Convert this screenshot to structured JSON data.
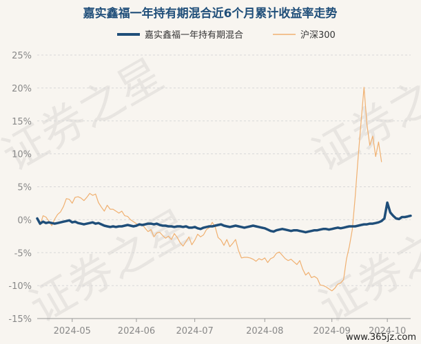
{
  "chart_data": {
    "type": "line",
    "title": "嘉实鑫福一年持有期混合近6个月累计收益率走势",
    "xlabel": "",
    "ylabel": "",
    "ylim": [
      -15,
      25
    ],
    "y_ticks": [
      "25%",
      "20%",
      "15%",
      "10%",
      "5%",
      "0%",
      "-5%",
      "-10%",
      "-15%"
    ],
    "y_tick_values": [
      25,
      20,
      15,
      10,
      5,
      0,
      -5,
      -10,
      -15
    ],
    "x_range": [
      0,
      128
    ],
    "x_ticks": [
      {
        "label": "2024-05",
        "x": 12
      },
      {
        "label": "2024-06",
        "x": 34
      },
      {
        "label": "2024-07",
        "x": 54
      },
      {
        "label": "2024-08",
        "x": 78
      },
      {
        "label": "2024-09",
        "x": 101
      },
      {
        "label": "2024-10",
        "x": 120
      }
    ],
    "grid": true,
    "legend_position": "top",
    "series": [
      {
        "name": "嘉实鑫福一年持有期混合",
        "color": "#1f4e79",
        "points": [
          [
            0,
            0.2
          ],
          [
            1,
            -0.6
          ],
          [
            2,
            -0.3
          ],
          [
            3,
            -0.5
          ],
          [
            4,
            -0.4
          ],
          [
            5,
            -0.5
          ],
          [
            6,
            -0.6
          ],
          [
            7,
            -0.5
          ],
          [
            8,
            -0.4
          ],
          [
            9,
            -0.3
          ],
          [
            10,
            -0.2
          ],
          [
            11,
            -0.1
          ],
          [
            12,
            -0.4
          ],
          [
            13,
            -0.3
          ],
          [
            14,
            -0.5
          ],
          [
            15,
            -0.6
          ],
          [
            16,
            -0.7
          ],
          [
            17,
            -0.6
          ],
          [
            18,
            -0.5
          ],
          [
            19,
            -0.4
          ],
          [
            20,
            -0.6
          ],
          [
            21,
            -0.5
          ],
          [
            22,
            -0.7
          ],
          [
            23,
            -0.9
          ],
          [
            24,
            -1.0
          ],
          [
            25,
            -1.1
          ],
          [
            26,
            -1.0
          ],
          [
            27,
            -1.1
          ],
          [
            28,
            -1.0
          ],
          [
            29,
            -1.0
          ],
          [
            30,
            -0.9
          ],
          [
            31,
            -0.8
          ],
          [
            32,
            -0.9
          ],
          [
            33,
            -1.0
          ],
          [
            34,
            -0.9
          ],
          [
            35,
            -0.7
          ],
          [
            36,
            -0.8
          ],
          [
            37,
            -0.7
          ],
          [
            38,
            -0.6
          ],
          [
            39,
            -0.6
          ],
          [
            40,
            -0.7
          ],
          [
            41,
            -0.6
          ],
          [
            42,
            -0.8
          ],
          [
            43,
            -0.9
          ],
          [
            44,
            -0.9
          ],
          [
            45,
            -1.0
          ],
          [
            46,
            -1.0
          ],
          [
            47,
            -1.1
          ],
          [
            48,
            -1.0
          ],
          [
            49,
            -1.0
          ],
          [
            50,
            -1.1
          ],
          [
            51,
            -1.0
          ],
          [
            52,
            -1.2
          ],
          [
            53,
            -1.2
          ],
          [
            54,
            -1.1
          ],
          [
            55,
            -1.3
          ],
          [
            56,
            -1.4
          ],
          [
            57,
            -1.2
          ],
          [
            58,
            -1.1
          ],
          [
            59,
            -1.0
          ],
          [
            60,
            -1.0
          ],
          [
            61,
            -0.9
          ],
          [
            62,
            -0.8
          ],
          [
            63,
            -0.7
          ],
          [
            64,
            -0.9
          ],
          [
            65,
            -1.0
          ],
          [
            66,
            -1.1
          ],
          [
            67,
            -1.0
          ],
          [
            68,
            -0.9
          ],
          [
            69,
            -1.0
          ],
          [
            70,
            -1.1
          ],
          [
            71,
            -1.2
          ],
          [
            72,
            -1.1
          ],
          [
            73,
            -1.0
          ],
          [
            74,
            -0.9
          ],
          [
            75,
            -1.0
          ],
          [
            76,
            -1.1
          ],
          [
            77,
            -1.2
          ],
          [
            78,
            -1.3
          ],
          [
            79,
            -1.5
          ],
          [
            80,
            -1.7
          ],
          [
            81,
            -1.8
          ],
          [
            82,
            -1.6
          ],
          [
            83,
            -1.5
          ],
          [
            84,
            -1.4
          ],
          [
            85,
            -1.5
          ],
          [
            86,
            -1.6
          ],
          [
            87,
            -1.7
          ],
          [
            88,
            -1.6
          ],
          [
            89,
            -1.6
          ],
          [
            90,
            -1.7
          ],
          [
            91,
            -1.8
          ],
          [
            92,
            -1.9
          ],
          [
            93,
            -1.8
          ],
          [
            94,
            -1.7
          ],
          [
            95,
            -1.6
          ],
          [
            96,
            -1.6
          ],
          [
            97,
            -1.5
          ],
          [
            98,
            -1.4
          ],
          [
            99,
            -1.4
          ],
          [
            100,
            -1.5
          ],
          [
            101,
            -1.4
          ],
          [
            102,
            -1.3
          ],
          [
            103,
            -1.2
          ],
          [
            104,
            -1.3
          ],
          [
            105,
            -1.2
          ],
          [
            106,
            -1.1
          ],
          [
            107,
            -1.0
          ],
          [
            108,
            -1.0
          ],
          [
            109,
            -1.0
          ],
          [
            110,
            -0.9
          ],
          [
            111,
            -0.8
          ],
          [
            112,
            -0.7
          ],
          [
            113,
            -0.7
          ],
          [
            114,
            -0.6
          ],
          [
            115,
            -0.6
          ],
          [
            116,
            -0.5
          ],
          [
            117,
            -0.4
          ],
          [
            118,
            -0.2
          ],
          [
            119,
            0.2
          ],
          [
            120,
            2.6
          ],
          [
            121,
            1.1
          ],
          [
            122,
            0.6
          ],
          [
            123,
            0.2
          ],
          [
            124,
            0.1
          ],
          [
            125,
            0.4
          ],
          [
            126,
            0.4
          ],
          [
            127,
            0.5
          ],
          [
            128,
            0.6
          ]
        ]
      },
      {
        "name": "沪深300",
        "color": "#f0b070",
        "points": [
          [
            0,
            0.3
          ],
          [
            1,
            -0.8
          ],
          [
            2,
            0.6
          ],
          [
            3,
            0.4
          ],
          [
            4,
            -0.2
          ],
          [
            5,
            -0.9
          ],
          [
            6,
            0.1
          ],
          [
            7,
            0.8
          ],
          [
            8,
            1.2
          ],
          [
            9,
            2.0
          ],
          [
            10,
            3.2
          ],
          [
            11,
            3.1
          ],
          [
            12,
            2.5
          ],
          [
            13,
            3.4
          ],
          [
            14,
            3.5
          ],
          [
            15,
            3.3
          ],
          [
            16,
            2.9
          ],
          [
            17,
            3.4
          ],
          [
            18,
            4.0
          ],
          [
            19,
            3.7
          ],
          [
            20,
            3.9
          ],
          [
            21,
            2.6
          ],
          [
            22,
            1.9
          ],
          [
            23,
            1.3
          ],
          [
            24,
            2.2
          ],
          [
            25,
            1.6
          ],
          [
            26,
            1.6
          ],
          [
            27,
            1.3
          ],
          [
            28,
            1.0
          ],
          [
            29,
            1.3
          ],
          [
            30,
            0.6
          ],
          [
            31,
            0.5
          ],
          [
            32,
            0.0
          ],
          [
            33,
            -0.3
          ],
          [
            34,
            -0.6
          ],
          [
            35,
            -0.9
          ],
          [
            36,
            -0.7
          ],
          [
            37,
            -1.3
          ],
          [
            38,
            -1.8
          ],
          [
            39,
            -1.5
          ],
          [
            40,
            -2.6
          ],
          [
            41,
            -2.0
          ],
          [
            42,
            -1.9
          ],
          [
            43,
            -2.4
          ],
          [
            44,
            -2.8
          ],
          [
            45,
            -2.5
          ],
          [
            46,
            -3.0
          ],
          [
            47,
            -2.1
          ],
          [
            48,
            -2.7
          ],
          [
            49,
            -3.5
          ],
          [
            50,
            -4.0
          ],
          [
            51,
            -3.3
          ],
          [
            52,
            -2.6
          ],
          [
            53,
            -3.8
          ],
          [
            54,
            -3.1
          ],
          [
            55,
            -2.2
          ],
          [
            56,
            -2.6
          ],
          [
            57,
            -2.3
          ],
          [
            58,
            -1.5
          ],
          [
            59,
            -1.2
          ],
          [
            60,
            -0.4
          ],
          [
            61,
            -1.1
          ],
          [
            62,
            -2.7
          ],
          [
            63,
            -3.1
          ],
          [
            64,
            -3.9
          ],
          [
            65,
            -3.0
          ],
          [
            66,
            -4.1
          ],
          [
            67,
            -3.6
          ],
          [
            68,
            -3.0
          ],
          [
            69,
            -4.7
          ],
          [
            70,
            -5.8
          ],
          [
            71,
            -5.7
          ],
          [
            72,
            -5.7
          ],
          [
            73,
            -5.8
          ],
          [
            74,
            -6.0
          ],
          [
            75,
            -6.3
          ],
          [
            76,
            -5.9
          ],
          [
            77,
            -6.1
          ],
          [
            78,
            -5.8
          ],
          [
            79,
            -6.5
          ],
          [
            80,
            -5.9
          ],
          [
            81,
            -5.7
          ],
          [
            82,
            -5.1
          ],
          [
            83,
            -4.9
          ],
          [
            84,
            -5.4
          ],
          [
            85,
            -5.9
          ],
          [
            86,
            -6.2
          ],
          [
            87,
            -6.0
          ],
          [
            88,
            -6.4
          ],
          [
            89,
            -6.8
          ],
          [
            90,
            -6.2
          ],
          [
            91,
            -7.5
          ],
          [
            92,
            -8.4
          ],
          [
            93,
            -8.0
          ],
          [
            94,
            -8.8
          ],
          [
            95,
            -8.6
          ],
          [
            96,
            -8.9
          ],
          [
            97,
            -9.9
          ],
          [
            98,
            -10.0
          ],
          [
            99,
            -10.2
          ],
          [
            100,
            -10.5
          ],
          [
            101,
            -10.8
          ],
          [
            102,
            -10.4
          ],
          [
            103,
            -9.8
          ],
          [
            104,
            -9.6
          ],
          [
            105,
            -9.1
          ],
          [
            106,
            -6.0
          ],
          [
            107,
            -4.0
          ],
          [
            108,
            -1.5
          ],
          [
            109,
            3.5
          ],
          [
            110,
            9.5
          ],
          [
            111,
            14.8
          ],
          [
            112,
            20.1
          ],
          [
            113,
            14.5
          ],
          [
            114,
            11.3
          ],
          [
            115,
            12.7
          ],
          [
            116,
            9.6
          ],
          [
            117,
            11.8
          ],
          [
            118,
            8.8
          ]
        ]
      }
    ]
  },
  "watermark": {
    "text": "证券之星",
    "url": "www.365jz.com"
  }
}
